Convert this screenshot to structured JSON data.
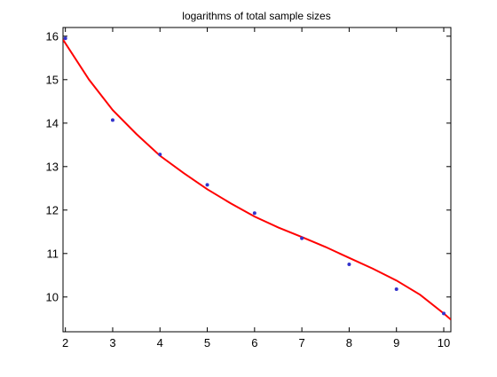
{
  "chart_data": {
    "type": "scatter",
    "title": "logarithms of total sample sizes",
    "xlabel": "",
    "ylabel": "",
    "xlim": [
      1.95,
      10.15
    ],
    "ylim": [
      9.2,
      16.2
    ],
    "x_ticks": [
      2,
      3,
      4,
      5,
      6,
      7,
      8,
      9,
      10
    ],
    "y_ticks": [
      10,
      11,
      12,
      13,
      14,
      15,
      16
    ],
    "grid": false,
    "legend": "none",
    "series": [
      {
        "kind": "points",
        "color": "#3333cc",
        "x": [
          2,
          3,
          4,
          5,
          6,
          7,
          8,
          9,
          10
        ],
        "y": [
          15.95,
          14.07,
          13.28,
          12.58,
          11.93,
          11.35,
          10.75,
          10.18,
          9.62
        ]
      },
      {
        "kind": "fitted-curve",
        "color": "#ff0000",
        "x": [
          1.95,
          2.5,
          3,
          3.5,
          4,
          4.5,
          5,
          5.5,
          6,
          6.5,
          7,
          7.5,
          8,
          8.5,
          9,
          9.5,
          10,
          10.15
        ],
        "y": [
          15.92,
          15.0,
          14.3,
          13.75,
          13.25,
          12.85,
          12.48,
          12.15,
          11.85,
          11.6,
          11.38,
          11.15,
          10.9,
          10.65,
          10.38,
          10.05,
          9.62,
          9.48
        ]
      }
    ]
  }
}
